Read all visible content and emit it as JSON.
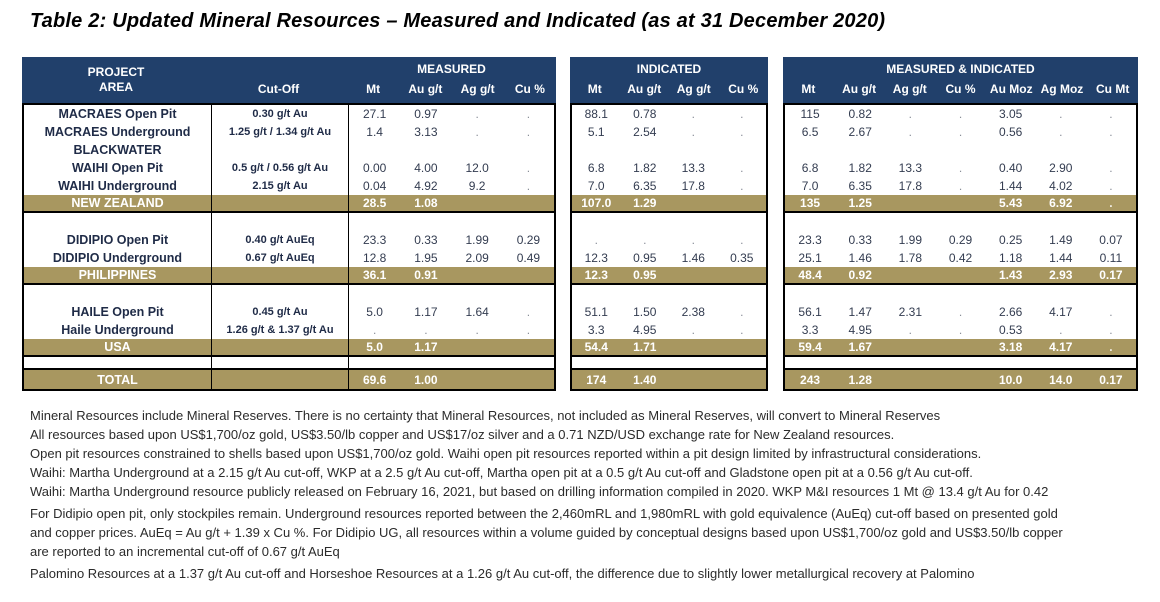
{
  "title": "Table 2: Updated Mineral Resources – Measured and Indicated (as at 31 December 2020)",
  "colors": {
    "header_bg": "#21406b",
    "subtotal_bg": "#a89760",
    "border": "#000000",
    "header_text": "#ffffff",
    "body_text": "#333c50"
  },
  "tables": {
    "left": {
      "group": "MEASURED",
      "col1_line1": "PROJECT",
      "col1_line2": "AREA",
      "col2": "Cut-Off",
      "value_headers": [
        "Mt",
        "Au g/t",
        "Ag g/t",
        "Cu %"
      ]
    },
    "mid": {
      "group": "INDICATED",
      "value_headers": [
        "Mt",
        "Au g/t",
        "Ag g/t",
        "Cu %"
      ]
    },
    "right": {
      "group": "MEASURED & INDICATED",
      "value_headers": [
        "Mt",
        "Au g/t",
        "Ag g/t",
        "Cu %",
        "Au Moz",
        "Ag Moz",
        "Cu Mt"
      ]
    }
  },
  "rows": [
    {
      "type": "data",
      "name": "MACRAES Open Pit",
      "cutoff": "0.30 g/t Au",
      "m": [
        "27.1",
        "0.97",
        ".",
        "."
      ],
      "i": [
        "88.1",
        "0.78",
        ".",
        "."
      ],
      "mi": [
        "115",
        "0.82",
        ".",
        ".",
        "3.05",
        ".",
        "."
      ]
    },
    {
      "type": "data",
      "name": "MACRAES Underground",
      "cutoff": "1.25 g/t / 1.34 g/t Au",
      "m": [
        "1.4",
        "3.13",
        ".",
        "."
      ],
      "i": [
        "5.1",
        "2.54",
        ".",
        "."
      ],
      "mi": [
        "6.5",
        "2.67",
        ".",
        ".",
        "0.56",
        ".",
        "."
      ]
    },
    {
      "type": "data",
      "name": "BLACKWATER",
      "cutoff": "",
      "m": [
        "",
        "",
        "",
        ""
      ],
      "i": [
        "",
        "",
        "",
        ""
      ],
      "mi": [
        "",
        "",
        "",
        "",
        "",
        "",
        ""
      ]
    },
    {
      "type": "data",
      "name": "WAIHI Open Pit",
      "cutoff": "0.5 g/t / 0.56 g/t Au",
      "m": [
        "0.00",
        "4.00",
        "12.0",
        "."
      ],
      "i": [
        "6.8",
        "1.82",
        "13.3",
        "."
      ],
      "mi": [
        "6.8",
        "1.82",
        "13.3",
        ".",
        "0.40",
        "2.90",
        "."
      ]
    },
    {
      "type": "data",
      "name": "WAIHI Underground",
      "cutoff": "2.15 g/t Au",
      "m": [
        "0.04",
        "4.92",
        "9.2",
        "."
      ],
      "i": [
        "7.0",
        "6.35",
        "17.8",
        "."
      ],
      "mi": [
        "7.0",
        "6.35",
        "17.8",
        ".",
        "1.44",
        "4.02",
        "."
      ]
    },
    {
      "type": "subtotal",
      "name": "NEW ZEALAND",
      "cutoff": "",
      "m": [
        "28.5",
        "1.08",
        "",
        ""
      ],
      "i": [
        "107.0",
        "1.29",
        "",
        ""
      ],
      "mi": [
        "135",
        "1.25",
        "",
        "",
        "5.43",
        "6.92",
        "."
      ]
    },
    {
      "type": "spacer",
      "name": "",
      "cutoff": "",
      "m": [
        "",
        "",
        "",
        ""
      ],
      "i": [
        "",
        "",
        "",
        ""
      ],
      "mi": [
        "",
        "",
        "",
        "",
        "",
        "",
        ""
      ]
    },
    {
      "type": "data",
      "name": "DIDIPIO Open Pit",
      "cutoff": "0.40 g/t AuEq",
      "m": [
        "23.3",
        "0.33",
        "1.99",
        "0.29"
      ],
      "i": [
        ".",
        ".",
        ".",
        "."
      ],
      "mi": [
        "23.3",
        "0.33",
        "1.99",
        "0.29",
        "0.25",
        "1.49",
        "0.07"
      ]
    },
    {
      "type": "data",
      "name": "DIDIPIO Underground",
      "cutoff": "0.67 g/t AuEq",
      "m": [
        "12.8",
        "1.95",
        "2.09",
        "0.49"
      ],
      "i": [
        "12.3",
        "0.95",
        "1.46",
        "0.35"
      ],
      "mi": [
        "25.1",
        "1.46",
        "1.78",
        "0.42",
        "1.18",
        "1.44",
        "0.11"
      ]
    },
    {
      "type": "subtotal",
      "name": "PHILIPPINES",
      "cutoff": "",
      "m": [
        "36.1",
        "0.91",
        "",
        ""
      ],
      "i": [
        "12.3",
        "0.95",
        "",
        ""
      ],
      "mi": [
        "48.4",
        "0.92",
        "",
        "",
        "1.43",
        "2.93",
        "0.17"
      ]
    },
    {
      "type": "spacer",
      "name": "",
      "cutoff": "",
      "m": [
        "",
        "",
        "",
        ""
      ],
      "i": [
        "",
        "",
        "",
        ""
      ],
      "mi": [
        "",
        "",
        "",
        "",
        "",
        "",
        ""
      ]
    },
    {
      "type": "data",
      "name": "HAILE Open Pit",
      "cutoff": "0.45 g/t Au",
      "m": [
        "5.0",
        "1.17",
        "1.64",
        "."
      ],
      "i": [
        "51.1",
        "1.50",
        "2.38",
        "."
      ],
      "mi": [
        "56.1",
        "1.47",
        "2.31",
        ".",
        "2.66",
        "4.17",
        "."
      ]
    },
    {
      "type": "data",
      "name": "Haile Underground",
      "cutoff": "1.26 g/t & 1.37 g/t Au",
      "m": [
        ".",
        ".",
        ".",
        "."
      ],
      "i": [
        "3.3",
        "4.95",
        ".",
        "."
      ],
      "mi": [
        "3.3",
        "4.95",
        ".",
        ".",
        "0.53",
        ".",
        "."
      ]
    },
    {
      "type": "subtotal",
      "name": "USA",
      "cutoff": "",
      "m": [
        "5.0",
        "1.17",
        "",
        ""
      ],
      "i": [
        "54.4",
        "1.71",
        "",
        ""
      ],
      "mi": [
        "59.4",
        "1.67",
        "",
        "",
        "3.18",
        "4.17",
        "."
      ]
    },
    {
      "type": "spacer_thin",
      "name": "",
      "cutoff": "",
      "m": [
        "",
        "",
        "",
        ""
      ],
      "i": [
        "",
        "",
        "",
        ""
      ],
      "mi": [
        "",
        "",
        "",
        "",
        "",
        "",
        ""
      ]
    },
    {
      "type": "total",
      "name": "TOTAL",
      "cutoff": "",
      "m": [
        "69.6",
        "1.00",
        "",
        ""
      ],
      "i": [
        "174",
        "1.40",
        "",
        ""
      ],
      "mi": [
        "243",
        "1.28",
        "",
        "",
        "10.0",
        "14.0",
        "0.17"
      ]
    }
  ],
  "footnotes": {
    "lines": [
      "Mineral Resources include Mineral Reserves. There is no certainty that Mineral Resources, not included as Mineral Reserves, will convert to Mineral Reserves",
      "All resources based upon US$1,700/oz gold, US$3.50/lb copper and US$17/oz silver and a 0.71 NZD/USD exchange rate for New Zealand resources.",
      "Open pit resources constrained to shells based upon US$1,700/oz gold. Waihi open pit resources reported within a pit design limited by infrastructural considerations.",
      "Waihi: Martha Underground at a 2.15 g/t  Au cut-off, WKP at a 2.5 g/t Au cut-off, Martha open pit at a 0.5 g/t Au cut-off and Gladstone open pit at a 0.56 g/t Au cut-off.",
      "Waihi: Martha Underground resource publicly released on February 16, 2021, but based on drilling information compiled in 2020. WKP M&I resources 1 Mt @ 13.4 g/t Au for 0.42",
      "For Didipio open pit,  only stockpiles remain. Underground resources reported between the 2,460mRL and 1,980mRL with gold equivalence (AuEq) cut-off based on presented gold",
      "and copper prices. AuEq = Au g/t + 1.39 x Cu %. For Didipio UG, all resources within a volume guided by conceptual designs based upon US$1,700/oz gold and US$3.50/lb copper",
      "are reported to an incremental cut-off of 0.67 g/t AuEq",
      "Palomino Resources at a 1.37 g/t Au cut-off and Horseshoe Resources at a 1.26 g/t Au cut-off, the difference due to slightly lower metallurgical recovery at Palomino"
    ],
    "paragraph_start_indices": [
      5,
      8
    ]
  }
}
